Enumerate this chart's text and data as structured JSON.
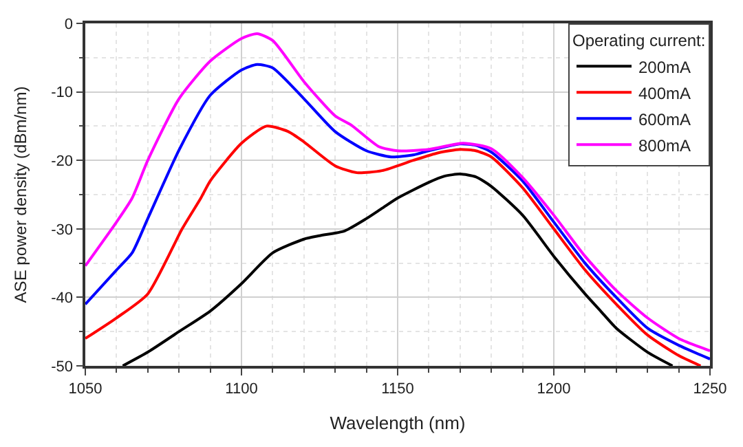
{
  "chart_data": {
    "type": "line",
    "xlabel": "Wavelength (nm)",
    "ylabel": "ASE power density (dBm/nm)",
    "legend_title": "Operating current:",
    "xlim": [
      1050,
      1250
    ],
    "xticks": [
      1050,
      1100,
      1150,
      1200,
      1250
    ],
    "ylim": [
      -50,
      0
    ],
    "yticks": [
      -50,
      -40,
      -30,
      -20,
      -10,
      0
    ],
    "grid": true,
    "legend": "top right",
    "marker": "none",
    "line_style": "solid",
    "series": [
      {
        "name": "200mA",
        "color": "#000000",
        "x": [
          1062,
          1070,
          1080,
          1090,
          1100,
          1110,
          1120,
          1125,
          1133,
          1140,
          1145,
          1150,
          1160,
          1165,
          1170,
          1175,
          1180,
          1190,
          1200,
          1210,
          1215,
          1220,
          1230,
          1238
        ],
        "values": [
          -50,
          -48,
          -45,
          -42,
          -38,
          -33.5,
          -31.5,
          -31,
          -30.3,
          -28.5,
          -27,
          -25.5,
          -23.2,
          -22.3,
          -22,
          -22.4,
          -23.8,
          -28,
          -34,
          -39.5,
          -42,
          -44.5,
          -48,
          -50
        ]
      },
      {
        "name": "400mA",
        "color": "#ff0000",
        "x": [
          1050,
          1060,
          1070,
          1081,
          1087,
          1090,
          1100,
          1108,
          1115,
          1120,
          1130,
          1137,
          1145,
          1155,
          1163,
          1170,
          1175,
          1180,
          1190,
          1200,
          1210,
          1220,
          1230,
          1240,
          1247
        ],
        "values": [
          -46,
          -43,
          -39.5,
          -30,
          -25.5,
          -23,
          -17.5,
          -15,
          -15.8,
          -17.3,
          -20.8,
          -21.8,
          -21.5,
          -20,
          -18.9,
          -18.4,
          -18.6,
          -19.5,
          -24,
          -30,
          -36,
          -41,
          -45.5,
          -48.5,
          -50
        ]
      },
      {
        "name": "600mA",
        "color": "#0000ff",
        "x": [
          1050,
          1060,
          1065,
          1070,
          1080,
          1090,
          1100,
          1105,
          1110,
          1120,
          1130,
          1140,
          1148,
          1155,
          1160,
          1170,
          1175,
          1180,
          1190,
          1200,
          1210,
          1220,
          1230,
          1240,
          1250
        ],
        "values": [
          -41,
          -36,
          -33.5,
          -28.5,
          -18.5,
          -10.5,
          -6.8,
          -6,
          -6.5,
          -11,
          -15.8,
          -18.6,
          -19.5,
          -19.2,
          -18.6,
          -17.6,
          -17.8,
          -18.8,
          -23,
          -29,
          -35,
          -40,
          -44.5,
          -47,
          -49
        ]
      },
      {
        "name": "800mA",
        "color": "#ff00ff",
        "x": [
          1050,
          1060,
          1065,
          1070,
          1080,
          1090,
          1100,
          1105,
          1110,
          1120,
          1130,
          1135,
          1144,
          1150,
          1160,
          1171,
          1180,
          1190,
          1200,
          1210,
          1220,
          1230,
          1240,
          1250
        ],
        "values": [
          -35.4,
          -29,
          -25.5,
          -20,
          -11,
          -5.5,
          -2.2,
          -1.5,
          -2.5,
          -8.5,
          -13.5,
          -14.8,
          -18,
          -18.6,
          -18.4,
          -17.5,
          -18.3,
          -22.5,
          -28,
          -34,
          -39,
          -43,
          -46,
          -47.8
        ]
      }
    ]
  }
}
